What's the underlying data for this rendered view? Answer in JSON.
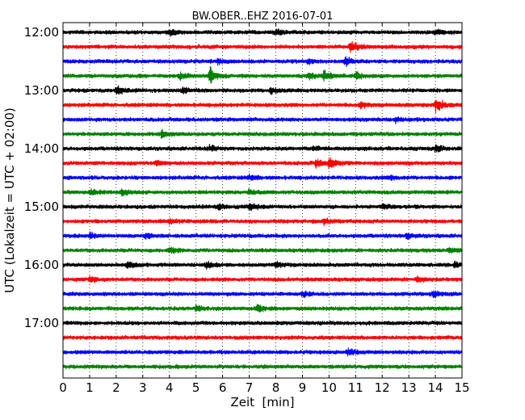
{
  "chart_data": {
    "type": "line",
    "title": "BW.OBER..EHZ 2016-07-01",
    "xlabel": "Zeit  [min]",
    "ylabel": "UTC (Lokalzeit = UTC + 02:00)",
    "xlim": [
      0,
      15
    ],
    "x_ticks": [
      "0",
      "1",
      "2",
      "3",
      "4",
      "5",
      "6",
      "7",
      "8",
      "9",
      "10",
      "11",
      "12",
      "13",
      "14",
      "15"
    ],
    "y_ticks": [
      "12:00",
      "13:00",
      "14:00",
      "15:00",
      "16:00",
      "17:00"
    ],
    "vertical_grid": "dotted",
    "line_colors": [
      "#000000",
      "#ff0000",
      "#0000ff",
      "#008000"
    ],
    "series": [
      {
        "start": "12:00",
        "color": "#000000",
        "events": [
          {
            "t": 4.0,
            "a": 1.6
          },
          {
            "t": 8.0,
            "a": 1.5
          },
          {
            "t": 14.0,
            "a": 1.4
          }
        ]
      },
      {
        "start": "12:15",
        "color": "#ff0000",
        "events": [
          {
            "t": 10.8,
            "a": 3.2
          }
        ]
      },
      {
        "start": "12:30",
        "color": "#0000ff",
        "events": [
          {
            "t": 10.6,
            "a": 2.0
          },
          {
            "t": 5.8,
            "a": 1.4
          },
          {
            "t": 9.2,
            "a": 1.3
          }
        ]
      },
      {
        "start": "12:45",
        "color": "#008000",
        "events": [
          {
            "t": 5.5,
            "a": 4.0
          },
          {
            "t": 9.8,
            "a": 2.6
          },
          {
            "t": 9.2,
            "a": 2.0
          },
          {
            "t": 11.0,
            "a": 1.8
          },
          {
            "t": 4.4,
            "a": 1.5
          }
        ]
      },
      {
        "start": "13:00",
        "color": "#000000",
        "events": [
          {
            "t": 2.0,
            "a": 2.2
          },
          {
            "t": 4.5,
            "a": 1.6
          },
          {
            "t": 7.8,
            "a": 1.3
          }
        ]
      },
      {
        "start": "13:15",
        "color": "#ff0000",
        "events": [
          {
            "t": 14.0,
            "a": 3.8
          },
          {
            "t": 11.2,
            "a": 1.5
          }
        ]
      },
      {
        "start": "13:30",
        "color": "#0000ff",
        "events": [
          {
            "t": 12.5,
            "a": 1.3
          }
        ]
      },
      {
        "start": "13:45",
        "color": "#008000",
        "events": [
          {
            "t": 3.7,
            "a": 2.2
          }
        ]
      },
      {
        "start": "14:00",
        "color": "#000000",
        "events": [
          {
            "t": 14.0,
            "a": 2.0
          },
          {
            "t": 5.5,
            "a": 1.5
          },
          {
            "t": 9.4,
            "a": 1.3
          }
        ]
      },
      {
        "start": "14:15",
        "color": "#ff0000",
        "events": [
          {
            "t": 10.0,
            "a": 2.6
          },
          {
            "t": 9.5,
            "a": 2.0
          },
          {
            "t": 3.5,
            "a": 1.3
          }
        ]
      },
      {
        "start": "14:30",
        "color": "#0000ff",
        "events": [
          {
            "t": 7.0,
            "a": 1.3
          },
          {
            "t": 12.3,
            "a": 1.2
          }
        ]
      },
      {
        "start": "14:45",
        "color": "#008000",
        "events": [
          {
            "t": 1.0,
            "a": 1.5
          },
          {
            "t": 2.2,
            "a": 1.3
          },
          {
            "t": 7.0,
            "a": 1.2
          }
        ]
      },
      {
        "start": "15:00",
        "color": "#000000",
        "events": [
          {
            "t": 7.0,
            "a": 2.4
          },
          {
            "t": 5.8,
            "a": 1.4
          },
          {
            "t": 12.0,
            "a": 1.2
          }
        ]
      },
      {
        "start": "15:15",
        "color": "#ff0000",
        "events": [
          {
            "t": 4.0,
            "a": 1.4
          },
          {
            "t": 9.8,
            "a": 1.3
          }
        ]
      },
      {
        "start": "15:30",
        "color": "#0000ff",
        "events": [
          {
            "t": 1.0,
            "a": 1.5
          },
          {
            "t": 3.1,
            "a": 1.3
          },
          {
            "t": 12.9,
            "a": 1.2
          }
        ]
      },
      {
        "start": "15:45",
        "color": "#008000",
        "events": [
          {
            "t": 4.0,
            "a": 1.4
          },
          {
            "t": 14.5,
            "a": 1.3
          }
        ]
      },
      {
        "start": "16:00",
        "color": "#000000",
        "events": [
          {
            "t": 5.4,
            "a": 1.9
          },
          {
            "t": 2.4,
            "a": 1.4
          },
          {
            "t": 8.0,
            "a": 1.3
          },
          {
            "t": 14.7,
            "a": 1.3
          }
        ]
      },
      {
        "start": "16:15",
        "color": "#ff0000",
        "events": [
          {
            "t": 1.0,
            "a": 1.3
          },
          {
            "t": 13.3,
            "a": 1.2
          }
        ]
      },
      {
        "start": "16:30",
        "color": "#0000ff",
        "events": [
          {
            "t": 13.9,
            "a": 1.6
          },
          {
            "t": 9.0,
            "a": 1.3
          }
        ]
      },
      {
        "start": "16:45",
        "color": "#008000",
        "events": [
          {
            "t": 7.3,
            "a": 1.6
          },
          {
            "t": 5.0,
            "a": 1.3
          }
        ]
      },
      {
        "start": "17:00",
        "color": "#000000",
        "events": []
      },
      {
        "start": "17:15",
        "color": "#ff0000",
        "events": []
      },
      {
        "start": "17:30",
        "color": "#0000ff",
        "events": [
          {
            "t": 10.7,
            "a": 1.5
          }
        ]
      },
      {
        "start": "17:45",
        "color": "#008000",
        "events": []
      }
    ]
  }
}
